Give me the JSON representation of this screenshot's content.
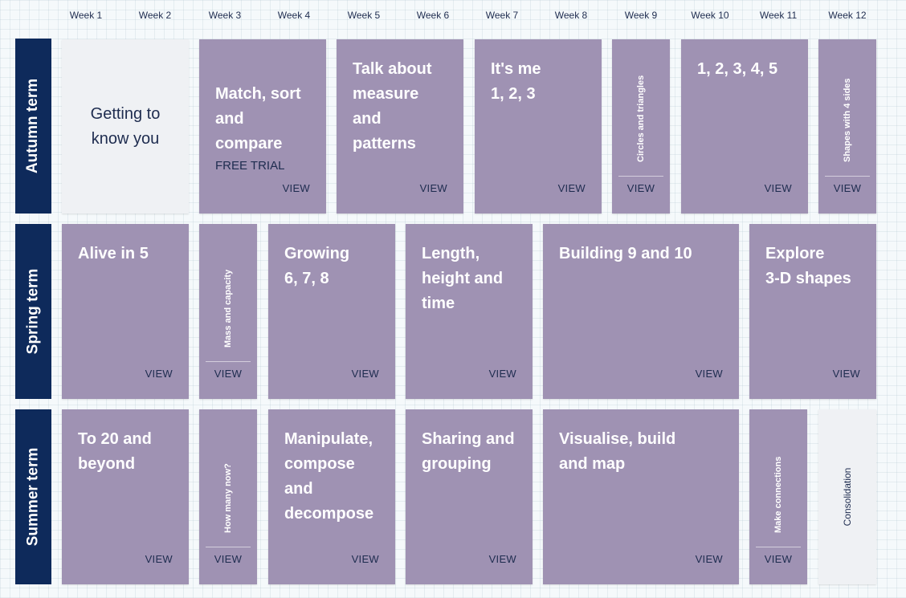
{
  "weeks": [
    "Week 1",
    "Week 2",
    "Week 3",
    "Week 4",
    "Week 5",
    "Week 6",
    "Week 7",
    "Week 8",
    "Week 9",
    "Week 10",
    "Week 11",
    "Week 12"
  ],
  "terms": {
    "autumn": "Autumn term",
    "spring": "Spring term",
    "summer": "Summer term"
  },
  "view_label": "VIEW",
  "autumn": {
    "getting_to_know": "Getting to\nknow you",
    "match_sort": "Match, sort\nand\ncompare",
    "free_trial": "FREE TRIAL",
    "talk_measure": "Talk about\nmeasure\nand\npatterns",
    "its_me": "It's me\n1, 2, 3",
    "circles": "Circles and triangles",
    "one_to_five": "1, 2, 3, 4, 5",
    "shapes_4_sides": "Shapes with 4 sides"
  },
  "spring": {
    "alive_in_5": "Alive in 5",
    "mass_capacity": "Mass and capacity",
    "growing": "Growing\n6, 7, 8",
    "length_height": "Length,\nheight and\ntime",
    "building_9_10": "Building 9 and 10",
    "explore_3d": "Explore\n3-D shapes"
  },
  "summer": {
    "to_20": "To 20 and\nbeyond",
    "how_many_now": "How many now?",
    "manipulate": "Manipulate,\ncompose\nand\ndecompose",
    "sharing": "Sharing and\ngrouping",
    "visualise": "Visualise, build\nand map",
    "make_connections": "Make connections",
    "consolidation": "Consolidation"
  }
}
